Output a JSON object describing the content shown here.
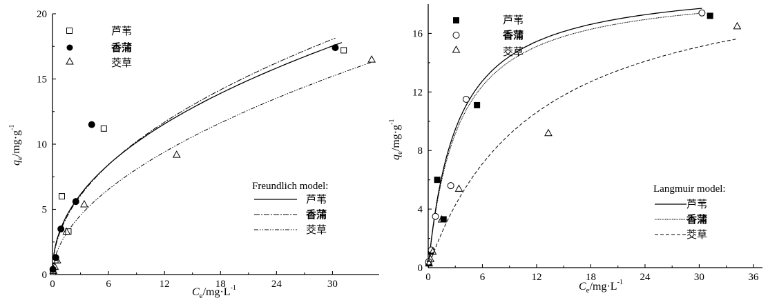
{
  "chart_data": [
    {
      "type": "scatter",
      "title": "",
      "xlim": [
        0,
        35
      ],
      "ylim": [
        0,
        20
      ],
      "xticks": [
        0,
        6,
        12,
        18,
        24,
        30
      ],
      "yticks": [
        0,
        5,
        10,
        15,
        20
      ],
      "xlabel": {
        "main": "C",
        "sub": "e",
        "unit": "/mg·L",
        "sup": "-1"
      },
      "ylabel": {
        "main": "q",
        "sub": "e",
        "unit": "/mg·g",
        "sup": "-1"
      },
      "legend_position": "top-left",
      "series": [
        {
          "name": "芦苇",
          "marker": "open-square",
          "x": [
            0.05,
            0.3,
            1.0,
            1.7,
            5.5,
            31.2
          ],
          "y": [
            0.2,
            1.1,
            6.0,
            3.3,
            11.2,
            17.2
          ]
        },
        {
          "name": "香蒲",
          "marker": "filled-circle",
          "x": [
            0.05,
            0.35,
            0.9,
            2.5,
            4.2,
            30.3
          ],
          "y": [
            0.4,
            1.3,
            3.5,
            5.6,
            11.5,
            17.4
          ]
        },
        {
          "name": "茭草",
          "marker": "open-triangle",
          "x": [
            0.1,
            0.25,
            0.5,
            1.5,
            3.4,
            13.3,
            34.2
          ],
          "y": [
            0.3,
            0.6,
            1.1,
            3.3,
            5.4,
            9.2,
            16.5
          ]
        }
      ],
      "fits": {
        "title": "Freundlich model:",
        "legend_position": "bottom-right",
        "curves": [
          {
            "name": "芦苇",
            "style": "solid",
            "params": {
              "k": 3.73,
              "n": 0.455
            },
            "xmax": 31
          },
          {
            "name": "香蒲",
            "style": "dashdot",
            "params": {
              "k": 3.6,
              "n": 0.474
            },
            "xmax": 30.3
          },
          {
            "name": "茭草",
            "style": "dashdotdot",
            "params": {
              "k": 2.55,
              "n": 0.525
            },
            "xmax": 34.2
          }
        ]
      }
    },
    {
      "type": "scatter",
      "title": "",
      "xlim": [
        0,
        37
      ],
      "ylim": [
        0,
        18
      ],
      "xticks": [
        0,
        6,
        12,
        18,
        24,
        30,
        36
      ],
      "yticks": [
        0,
        4,
        8,
        12,
        16
      ],
      "xlabel": {
        "main": "C",
        "sub": "e",
        "unit": "/mg·L",
        "sup": "-1"
      },
      "ylabel": {
        "main": "q",
        "sub": "e",
        "unit": "/mg·g",
        "sup": "-1"
      },
      "legend_position": "top-left",
      "series": [
        {
          "name": "芦苇",
          "marker": "filled-square",
          "x": [
            0.05,
            0.3,
            1.0,
            1.7,
            5.4,
            31.2
          ],
          "y": [
            0.3,
            1.1,
            6.0,
            3.3,
            11.1,
            17.2
          ]
        },
        {
          "name": "香蒲",
          "marker": "open-circle",
          "x": [
            0.05,
            0.35,
            0.8,
            2.5,
            4.2,
            30.3
          ],
          "y": [
            0.4,
            1.2,
            3.5,
            5.6,
            11.5,
            17.4
          ]
        },
        {
          "name": "茭草",
          "marker": "open-triangle",
          "x": [
            0.1,
            0.25,
            0.5,
            1.5,
            3.4,
            13.3,
            34.2
          ],
          "y": [
            0.3,
            0.6,
            1.1,
            3.3,
            5.4,
            9.2,
            16.5
          ]
        }
      ],
      "fits": {
        "title": "Langmuir model:",
        "legend_position": "bottom-right",
        "curves": [
          {
            "name": "芦苇",
            "style": "solid",
            "params": {
              "qm": 19.6,
              "K": 0.31
            },
            "xmax": 30.3
          },
          {
            "name": "香蒲",
            "style": "dotted",
            "params": {
              "qm": 19.3,
              "K": 0.3
            },
            "xmax": 30.3
          },
          {
            "name": "茭草",
            "style": "dashed",
            "params": {
              "qm": 21.0,
              "K": 0.085
            },
            "xmax": 34.2
          }
        ]
      }
    }
  ]
}
